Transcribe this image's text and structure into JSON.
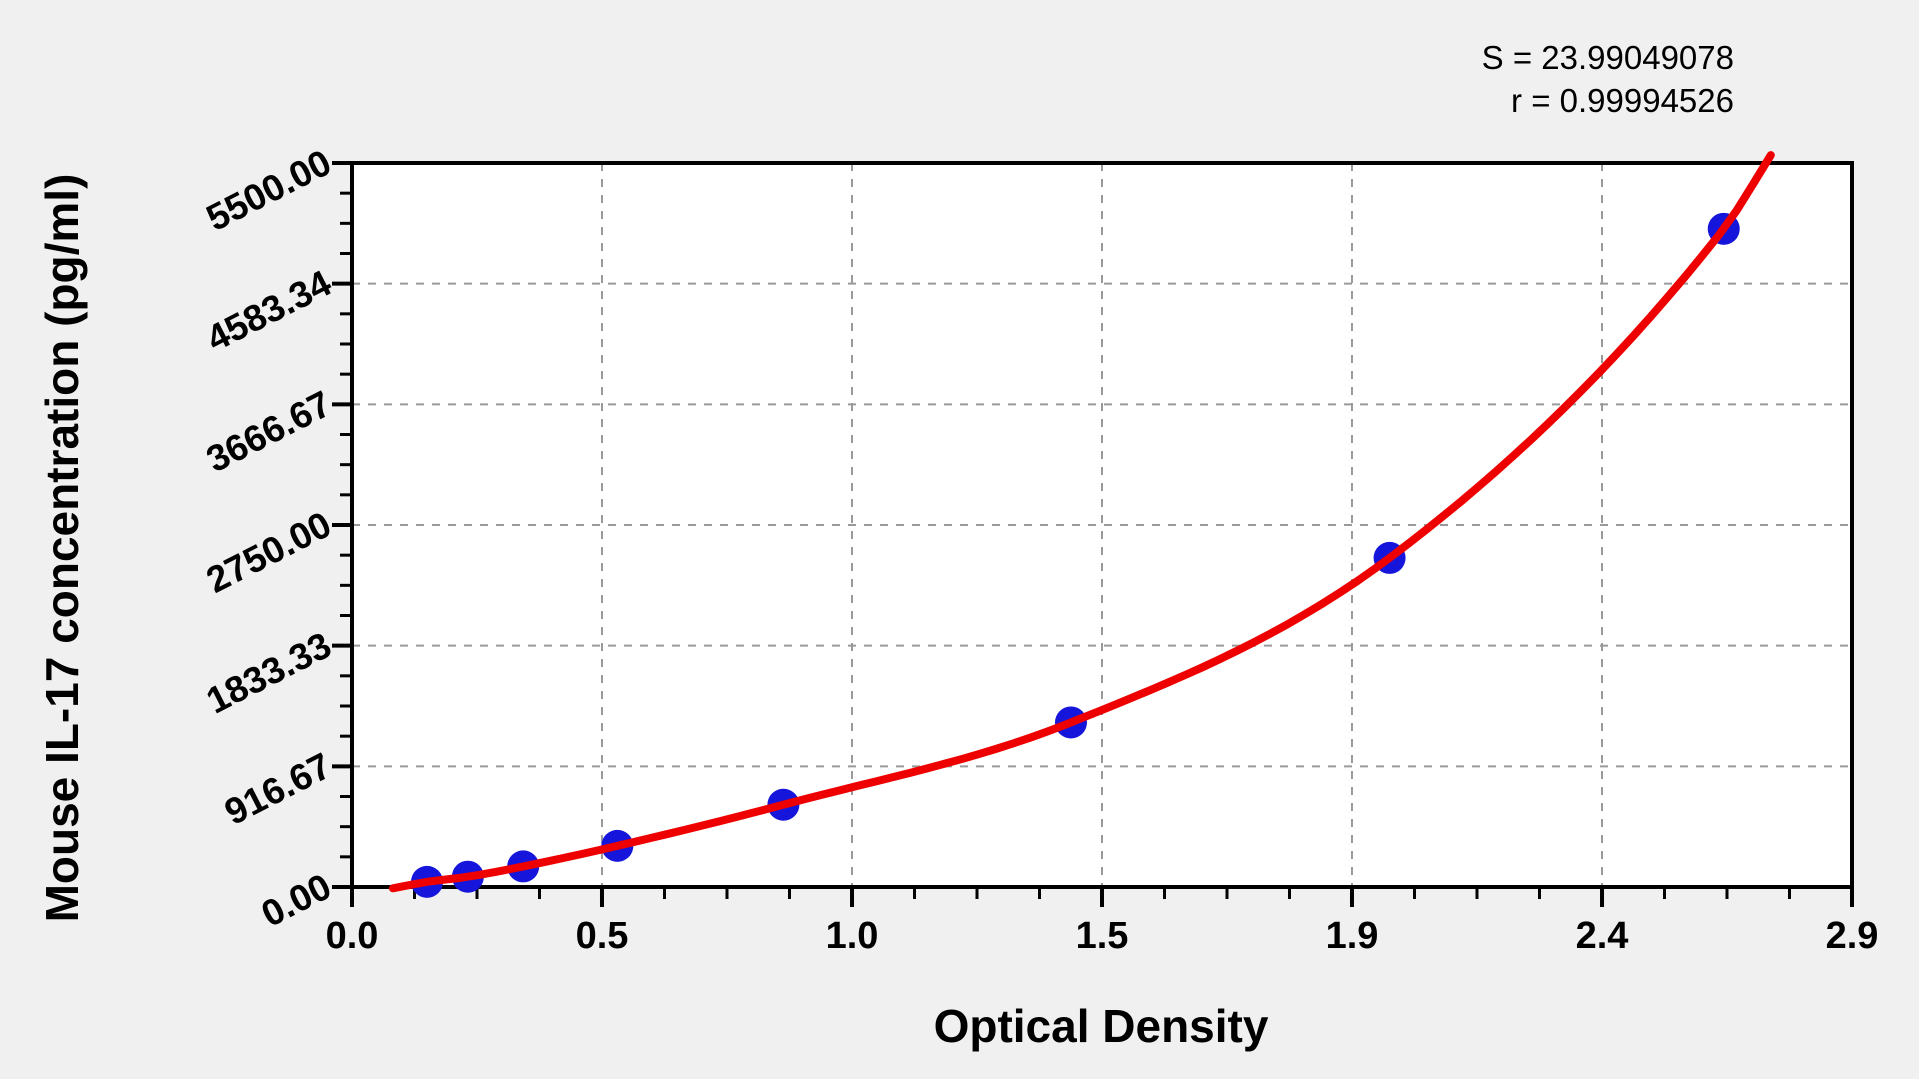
{
  "stats": {
    "s_line": "S = 23.99049078",
    "r_line": "r = 0.99994526"
  },
  "colors": {
    "background": "#f0f0f0",
    "plot_background": "#ffffff",
    "axis": "#000000",
    "grid": "#9a9a9a",
    "curve": "#ee0000",
    "point": "#1515dc"
  },
  "chart_data": {
    "type": "scatter",
    "title": "",
    "xlabel": "Optical Density",
    "ylabel": "Mouse IL-17 concentration (pg/ml)",
    "xlim": [
      0,
      2.9
    ],
    "ylim": [
      0,
      5500
    ],
    "x_ticks": {
      "values": [
        0,
        0.4833,
        0.9667,
        1.45,
        1.9333,
        2.4167,
        2.9
      ],
      "labels": [
        "0.0",
        "0.5",
        "1.0",
        "1.5",
        "1.9",
        "2.4",
        "2.9"
      ],
      "minor_per_interval": 3
    },
    "y_ticks": {
      "values": [
        0,
        916.67,
        1833.33,
        2750,
        3666.67,
        4583.34,
        5500
      ],
      "labels": [
        "0.00",
        "916.67",
        "1833.33",
        "2750.00",
        "3666.67",
        "4583.34",
        "5500.00"
      ],
      "minor_per_interval": 3
    },
    "grid": "dashed gray lines at major ticks, both axes",
    "legend": null,
    "series": [
      {
        "name": "standard-points",
        "type": "scatter",
        "color": "#1515dc",
        "x": [
          0.145,
          0.224,
          0.331,
          0.513,
          0.834,
          1.39,
          2.006,
          2.652
        ],
        "y": [
          39.06,
          78.13,
          156.25,
          312.5,
          625,
          1250,
          2500,
          5000
        ]
      },
      {
        "name": "fitted-curve",
        "type": "line",
        "color": "#ee0000",
        "x": [
          0.079,
          0.145,
          0.224,
          0.331,
          0.513,
          0.834,
          1.39,
          2.006,
          2.652,
          2.743
        ],
        "y": [
          -10,
          39.06,
          78.13,
          156.25,
          312.5,
          625,
          1250,
          2500,
          5000,
          5560
        ]
      }
    ],
    "annotations": {
      "S": 23.99049078,
      "r": 0.99994526
    }
  }
}
